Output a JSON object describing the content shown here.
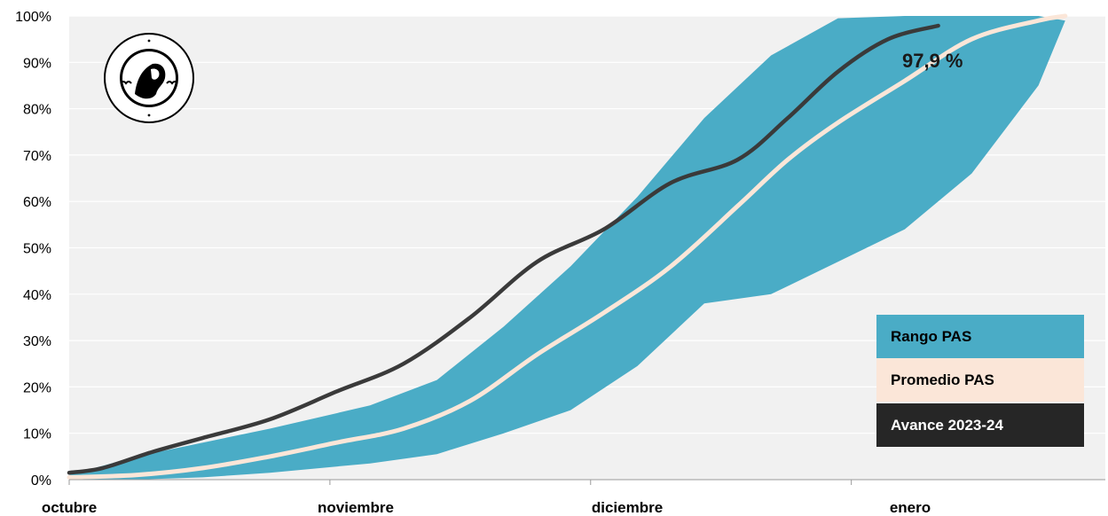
{
  "chart_data": {
    "type": "area",
    "y_ticks": [
      "0%",
      "10%",
      "20%",
      "30%",
      "40%",
      "50%",
      "60%",
      "70%",
      "80%",
      "90%",
      "100%"
    ],
    "x_ticks": [
      "octubre",
      "noviembre",
      "diciembre",
      "enero"
    ],
    "ylim": [
      0,
      100
    ],
    "grid": true,
    "legend_position": "bottom-right",
    "legend": [
      {
        "label": "Rango PAS",
        "color": "#4AACC6",
        "text_color": "#000000"
      },
      {
        "label": "Promedio PAS",
        "color": "#FBE6D8",
        "text_color": "#000000"
      },
      {
        "label": "Avance 2023-24",
        "color": "#262626",
        "text_color": "#FFFFFF"
      }
    ],
    "annotation": "97,9 %",
    "series": [
      {
        "name": "Rango PAS",
        "kind": "band",
        "color": "#4AACC6",
        "upper": [
          [
            0,
            1
          ],
          [
            20,
            5
          ],
          [
            40,
            8
          ],
          [
            60,
            11
          ],
          [
            90,
            16
          ],
          [
            110,
            21.5
          ],
          [
            130,
            33
          ],
          [
            150,
            46
          ],
          [
            170,
            61
          ],
          [
            190,
            78
          ],
          [
            210,
            91.5
          ],
          [
            230,
            99.5
          ],
          [
            250,
            100
          ],
          [
            290,
            100
          ],
          [
            298,
            99
          ]
        ],
        "lower": [
          [
            0,
            0
          ],
          [
            20,
            0
          ],
          [
            40,
            0.5
          ],
          [
            60,
            1.5
          ],
          [
            90,
            3.5
          ],
          [
            110,
            5.5
          ],
          [
            130,
            10
          ],
          [
            150,
            15
          ],
          [
            170,
            24.5
          ],
          [
            190,
            38
          ],
          [
            210,
            40
          ],
          [
            230,
            47
          ],
          [
            250,
            54
          ],
          [
            270,
            66
          ],
          [
            290,
            85
          ],
          [
            298,
            99
          ]
        ]
      },
      {
        "name": "Promedio PAS",
        "kind": "line",
        "color": "#FBE6D8",
        "points": [
          [
            0,
            0.5
          ],
          [
            20,
            1
          ],
          [
            40,
            2.5
          ],
          [
            60,
            5
          ],
          [
            80,
            8
          ],
          [
            100,
            11
          ],
          [
            120,
            17
          ],
          [
            140,
            27
          ],
          [
            160,
            36
          ],
          [
            180,
            46
          ],
          [
            200,
            59
          ],
          [
            215,
            69
          ],
          [
            230,
            77
          ],
          [
            250,
            86
          ],
          [
            270,
            95
          ],
          [
            290,
            99
          ],
          [
            298,
            100
          ]
        ]
      },
      {
        "name": "Avance 2023-24",
        "kind": "line",
        "color": "#3A3A3A",
        "points": [
          [
            0,
            1.5
          ],
          [
            10,
            2.5
          ],
          [
            25,
            6
          ],
          [
            40,
            9
          ],
          [
            60,
            13
          ],
          [
            80,
            19
          ],
          [
            100,
            25
          ],
          [
            120,
            35
          ],
          [
            140,
            47
          ],
          [
            160,
            54
          ],
          [
            180,
            64
          ],
          [
            200,
            69
          ],
          [
            215,
            78
          ],
          [
            230,
            88
          ],
          [
            245,
            95
          ],
          [
            260,
            97.9
          ]
        ]
      }
    ]
  }
}
